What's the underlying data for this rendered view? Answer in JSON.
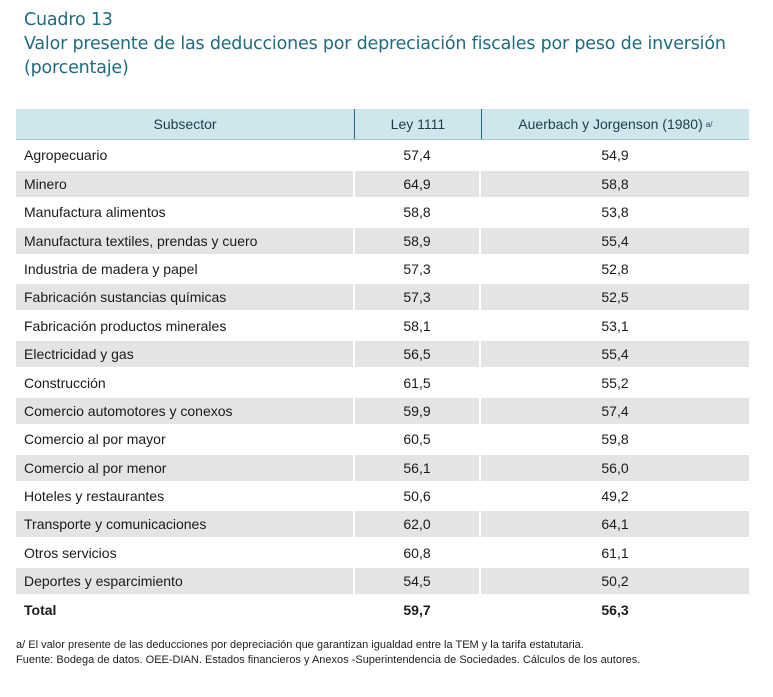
{
  "heading": {
    "label": "Cuadro 13",
    "title": "Valor presente de las deducciones por depreciación fiscales por peso de inversión",
    "subtitle": "(porcentaje)"
  },
  "table": {
    "headers": {
      "subsector": "Subsector",
      "ley": "Ley 1111",
      "auerbach": "Auerbach y Jorgenson (1980)",
      "auerbach_note": "a/"
    },
    "rows": [
      {
        "subsector": "Agropecuario",
        "ley": "57,4",
        "auerbach": "54,9"
      },
      {
        "subsector": "Minero",
        "ley": "64,9",
        "auerbach": "58,8"
      },
      {
        "subsector": "Manufactura alimentos",
        "ley": "58,8",
        "auerbach": "53,8"
      },
      {
        "subsector": "Manufactura textiles, prendas y cuero",
        "ley": "58,9",
        "auerbach": "55,4"
      },
      {
        "subsector": "Industria de madera y papel",
        "ley": "57,3",
        "auerbach": "52,8"
      },
      {
        "subsector": "Fabricación sustancias químicas",
        "ley": "57,3",
        "auerbach": "52,5"
      },
      {
        "subsector": "Fabricación productos minerales",
        "ley": "58,1",
        "auerbach": "53,1"
      },
      {
        "subsector": "Electricidad y gas",
        "ley": "56,5",
        "auerbach": "55,4"
      },
      {
        "subsector": "Construcción",
        "ley": "61,5",
        "auerbach": "55,2"
      },
      {
        "subsector": "Comercio automotores y conexos",
        "ley": "59,9",
        "auerbach": "57,4"
      },
      {
        "subsector": "Comercio al por mayor",
        "ley": "60,5",
        "auerbach": "59,8"
      },
      {
        "subsector": "Comercio al por menor",
        "ley": "56,1",
        "auerbach": "56,0"
      },
      {
        "subsector": "Hoteles y restaurantes",
        "ley": "50,6",
        "auerbach": "49,2"
      },
      {
        "subsector": "Transporte y comunicaciones",
        "ley": "62,0",
        "auerbach": "64,1"
      },
      {
        "subsector": "Otros servicios",
        "ley": "60,8",
        "auerbach": "61,1"
      },
      {
        "subsector": "Deportes y esparcimiento",
        "ley": "54,5",
        "auerbach": "50,2"
      }
    ],
    "total": {
      "label": "Total",
      "ley": "59,7",
      "auerbach": "56,3"
    }
  },
  "notes": {
    "footnote": "a/ El valor presente de las deducciones por depreciación que garantizan igualdad entre la TEM y la tarifa estatutaria.",
    "source": "Fuente: Bodega de datos. OEE-DIAN. Estados financieros y Anexos -Superintendencia de Sociedades. Cálculos de los autores."
  },
  "colors": {
    "title": "#1f6b80",
    "header_bg": "#cfe6ec",
    "row_shade": "#e4e4e4"
  }
}
